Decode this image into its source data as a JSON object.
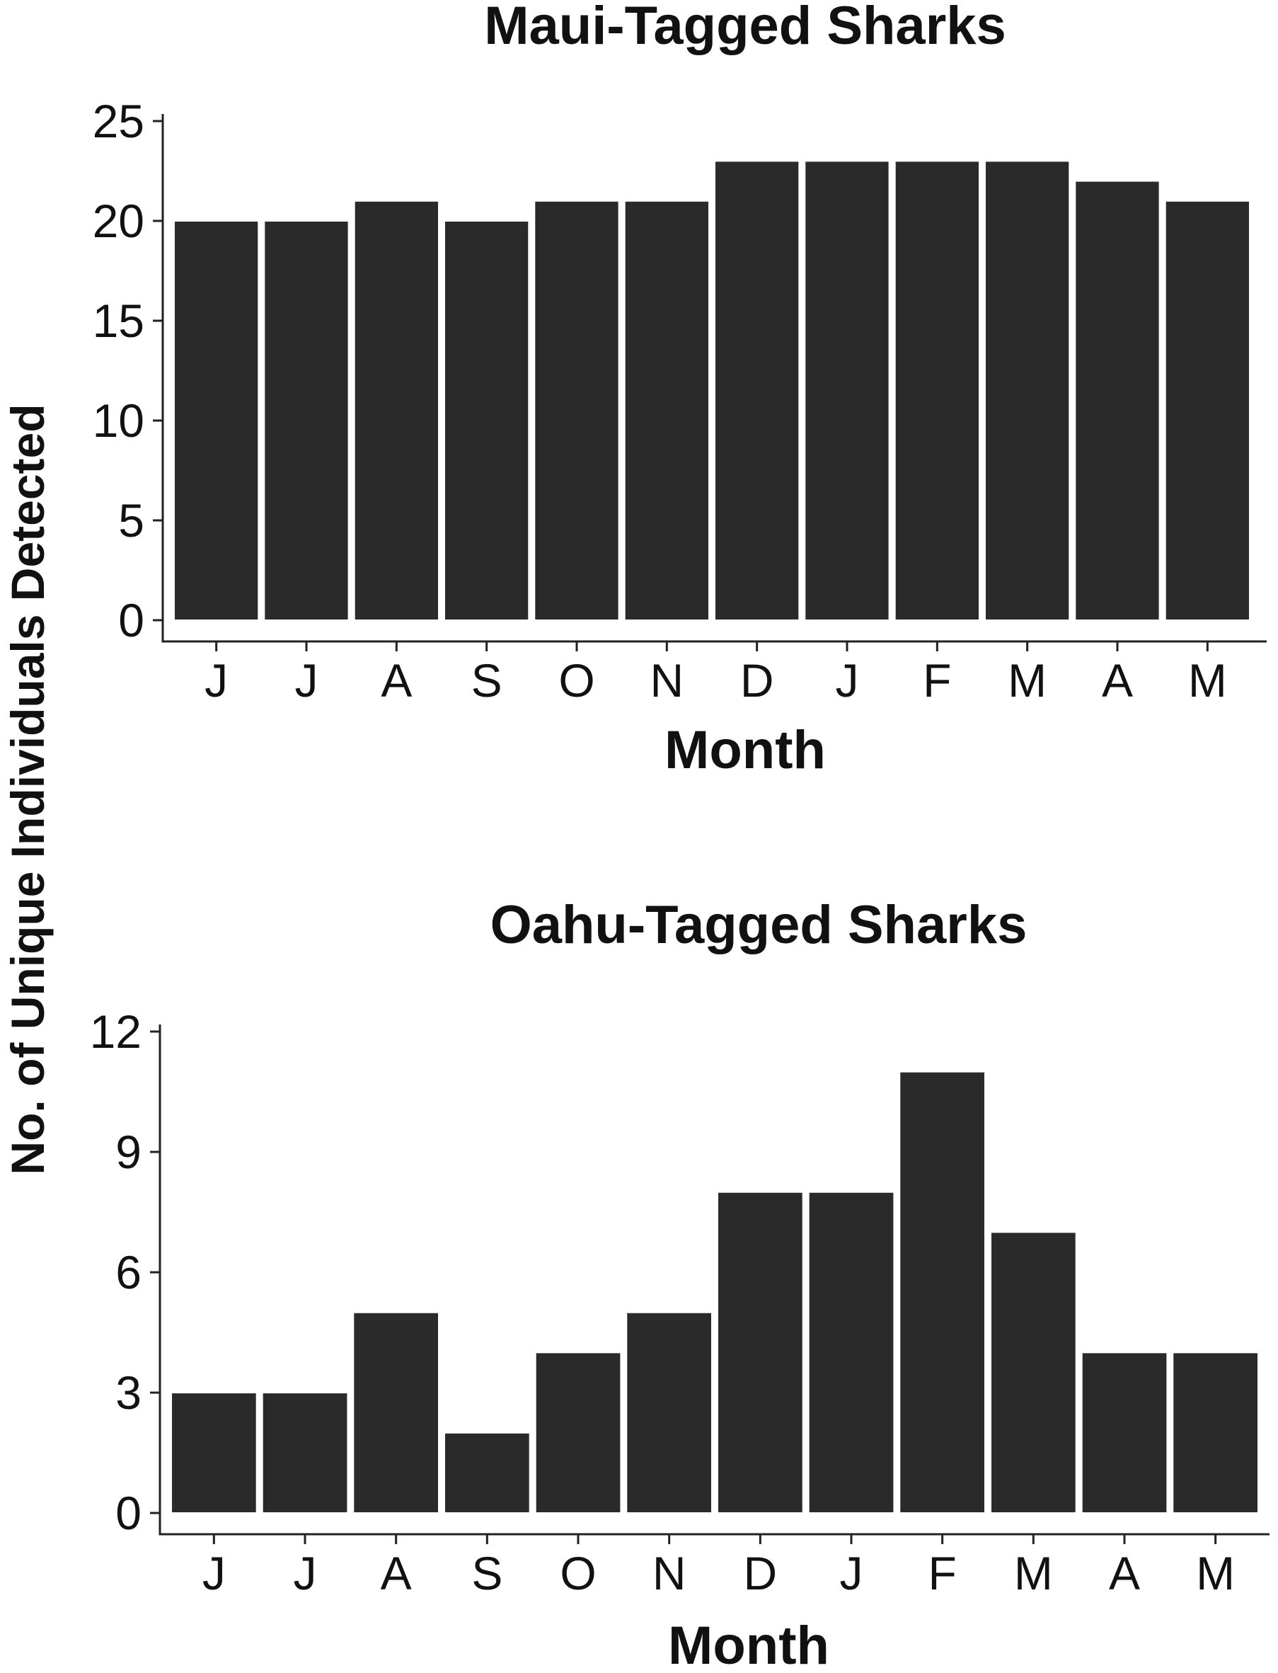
{
  "ylabel": "No. of Unique Individuals Detected",
  "colors": {
    "bar": "#2a2a2a",
    "bar_edge": "#ffffff",
    "axis": "#222222"
  },
  "chart_data": [
    {
      "type": "bar",
      "title": "Maui-Tagged Sharks",
      "xlabel": "Month",
      "ylabel": "No. of Unique Individuals Detected",
      "categories": [
        "J",
        "J",
        "A",
        "S",
        "O",
        "N",
        "D",
        "J",
        "F",
        "M",
        "A",
        "M"
      ],
      "values": [
        20,
        20,
        21,
        20,
        21,
        21,
        23,
        23,
        23,
        23,
        22,
        21
      ],
      "yticks": [
        0,
        5,
        10,
        15,
        20,
        25
      ],
      "ylim": [
        0,
        25
      ],
      "grid": false,
      "legend": "none"
    },
    {
      "type": "bar",
      "title": "Oahu-Tagged Sharks",
      "xlabel": "Month",
      "ylabel": "No. of Unique Individuals Detected",
      "categories": [
        "J",
        "J",
        "A",
        "S",
        "O",
        "N",
        "D",
        "J",
        "F",
        "M",
        "A",
        "M"
      ],
      "values": [
        3,
        3,
        5,
        2,
        4,
        5,
        8,
        8,
        11,
        7,
        4,
        4
      ],
      "yticks": [
        0,
        3,
        6,
        9,
        12
      ],
      "ylim": [
        0,
        12
      ],
      "grid": false,
      "legend": "none"
    }
  ]
}
